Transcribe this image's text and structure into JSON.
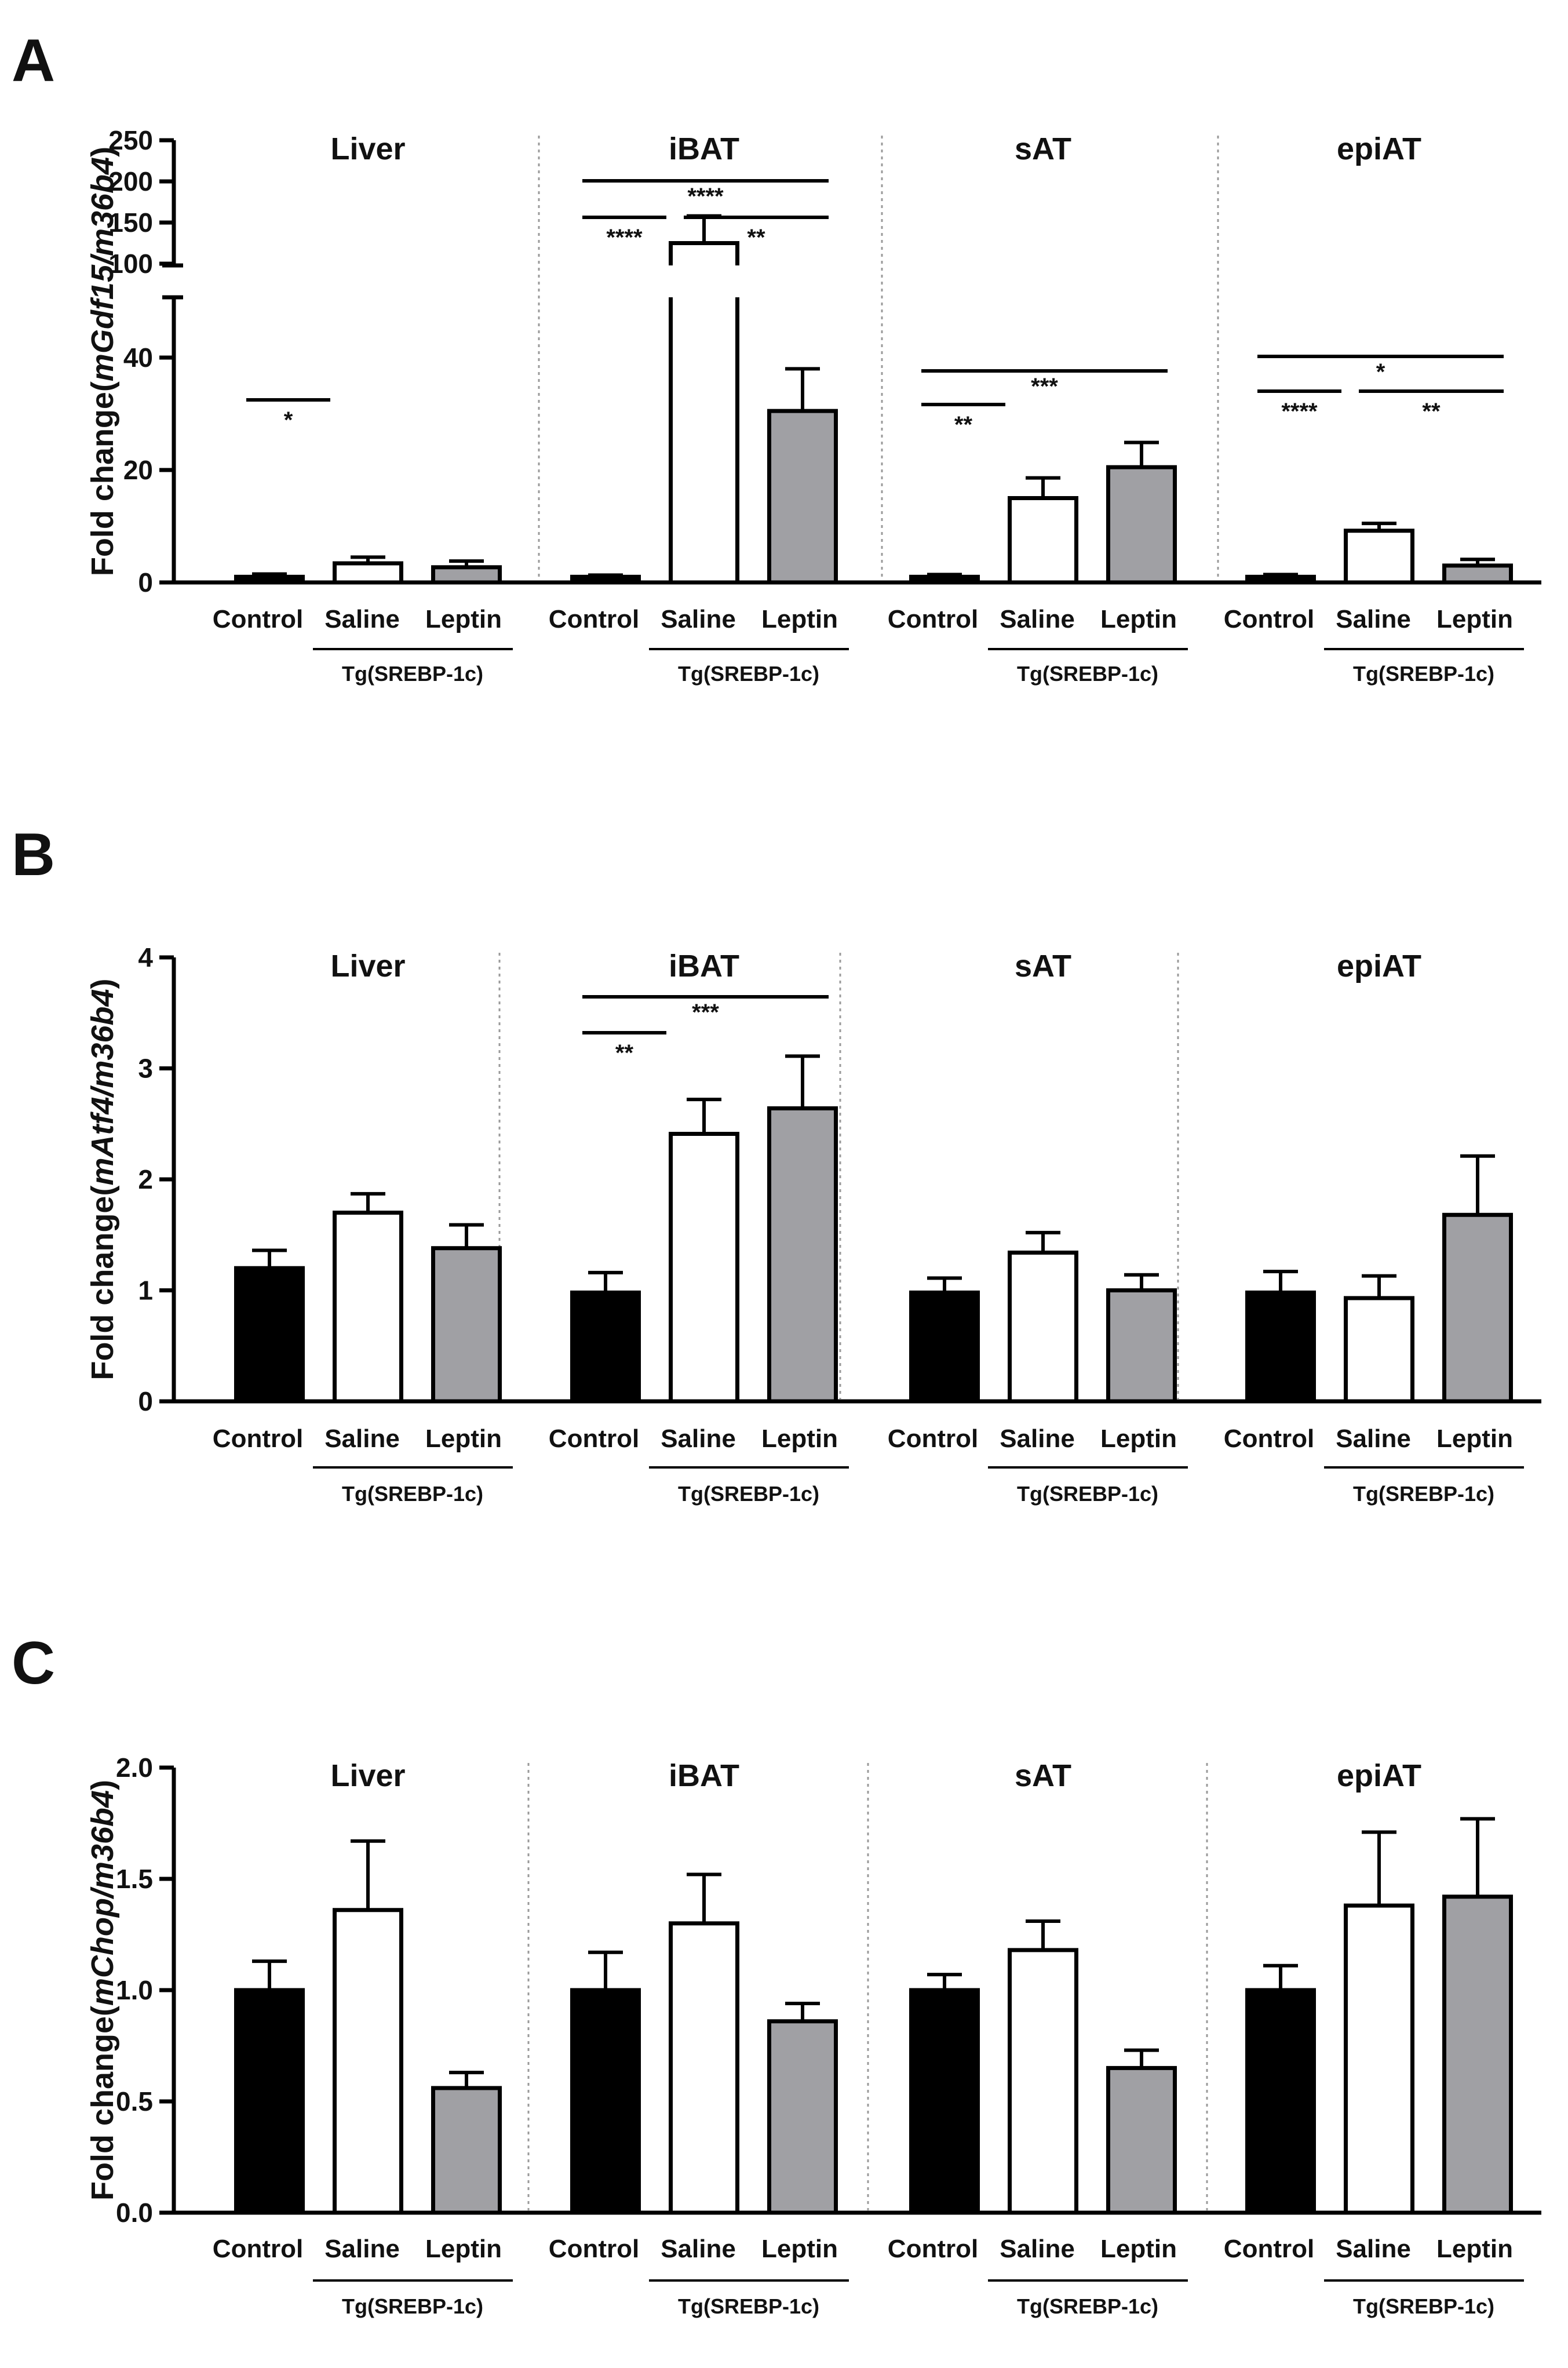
{
  "colors": {
    "control": "#000000",
    "saline": "#ffffff",
    "leptin": "#a0a0a4",
    "axis": "#000000",
    "divider": "#9a9a9a"
  },
  "chart_data": [
    {
      "id": "A",
      "panel_label": "A",
      "type": "bar",
      "ylabel_prefix": "Fold change(",
      "ylabel_gene": "mGdf15/m36b4",
      "ylabel_suffix": ")",
      "ylim": [
        0,
        250
      ],
      "axis_break": {
        "lower_max": 50,
        "upper_min": 100,
        "upper_max": 250
      },
      "yticks": [
        0,
        20,
        40,
        100,
        150,
        200,
        250
      ],
      "ytick_labels": [
        "0",
        "20",
        "40",
        "100",
        "150",
        "200",
        "250"
      ],
      "categories": [
        "Control",
        "Saline",
        "Leptin"
      ],
      "group_label": "Tg(SREBP-1c)",
      "groups": [
        {
          "name": "Liver",
          "values": [
            1.0,
            3.4,
            2.7
          ],
          "errors": [
            0.5,
            1.1,
            1.1
          ],
          "comparisons": [
            {
              "a": 0,
              "b": 1,
              "label": "*",
              "level": 0
            }
          ]
        },
        {
          "name": "iBAT",
          "values": [
            1.0,
            125,
            30.5
          ],
          "errors": [
            0.3,
            33,
            7.5
          ],
          "comparisons": [
            {
              "a": 0,
              "b": 1,
              "label": "****",
              "level": 0
            },
            {
              "a": 1,
              "b": 2,
              "label": "**",
              "level": 0
            },
            {
              "a": 0,
              "b": 2,
              "label": "****",
              "level": 1
            }
          ]
        },
        {
          "name": "sAT",
          "values": [
            1.0,
            15.0,
            20.5
          ],
          "errors": [
            0.4,
            3.6,
            4.4
          ],
          "comparisons": [
            {
              "a": 0,
              "b": 1,
              "label": "**",
              "level": 0
            },
            {
              "a": 0,
              "b": 2,
              "label": "***",
              "level": 1
            }
          ]
        },
        {
          "name": "epiAT",
          "values": [
            1.0,
            9.2,
            3.0
          ],
          "errors": [
            0.4,
            1.3,
            1.1
          ],
          "comparisons": [
            {
              "a": 0,
              "b": 1,
              "label": "****",
              "level": 0
            },
            {
              "a": 1,
              "b": 2,
              "label": "**",
              "level": 0
            },
            {
              "a": 0,
              "b": 2,
              "label": "*",
              "level": 1
            }
          ]
        }
      ]
    },
    {
      "id": "B",
      "panel_label": "B",
      "type": "bar",
      "ylabel_prefix": "Fold change(",
      "ylabel_gene": "mAtf4/m36b4",
      "ylabel_suffix": ")",
      "ylim": [
        0,
        4
      ],
      "yticks": [
        0,
        1,
        2,
        3,
        4
      ],
      "ytick_labels": [
        "0",
        "1",
        "2",
        "3",
        "4"
      ],
      "categories": [
        "Control",
        "Saline",
        "Leptin"
      ],
      "group_label": "Tg(SREBP-1c)",
      "groups": [
        {
          "name": "Liver",
          "values": [
            1.2,
            1.7,
            1.38
          ],
          "errors": [
            0.16,
            0.17,
            0.21
          ],
          "comparisons": []
        },
        {
          "name": "iBAT",
          "values": [
            0.98,
            2.41,
            2.64
          ],
          "errors": [
            0.18,
            0.31,
            0.47
          ],
          "comparisons": [
            {
              "a": 0,
              "b": 1,
              "label": "**",
              "level": 0
            },
            {
              "a": 0,
              "b": 2,
              "label": "***",
              "level": 1
            }
          ]
        },
        {
          "name": "sAT",
          "values": [
            0.98,
            1.34,
            1.0
          ],
          "errors": [
            0.13,
            0.18,
            0.14
          ],
          "comparisons": []
        },
        {
          "name": "epiAT",
          "values": [
            0.98,
            0.93,
            1.68
          ],
          "errors": [
            0.19,
            0.2,
            0.53
          ],
          "comparisons": []
        }
      ]
    },
    {
      "id": "C",
      "panel_label": "C",
      "type": "bar",
      "ylabel_prefix": "Fold change(",
      "ylabel_gene": "mChop/m36b4",
      "ylabel_suffix": ")",
      "ylim": [
        0,
        2.0
      ],
      "yticks": [
        0,
        0.5,
        1.0,
        1.5,
        2.0
      ],
      "ytick_labels": [
        "0.0",
        "0.5",
        "1.0",
        "1.5",
        "2.0"
      ],
      "categories": [
        "Control",
        "Saline",
        "Leptin"
      ],
      "group_label": "Tg(SREBP-1c)",
      "groups": [
        {
          "name": "Liver",
          "values": [
            1.0,
            1.36,
            0.56
          ],
          "errors": [
            0.13,
            0.31,
            0.07
          ],
          "comparisons": []
        },
        {
          "name": "iBAT",
          "values": [
            1.0,
            1.3,
            0.86
          ],
          "errors": [
            0.17,
            0.22,
            0.08
          ],
          "comparisons": []
        },
        {
          "name": "sAT",
          "values": [
            1.0,
            1.18,
            0.65
          ],
          "errors": [
            0.07,
            0.13,
            0.08
          ],
          "comparisons": []
        },
        {
          "name": "epiAT",
          "values": [
            1.0,
            1.38,
            1.42
          ],
          "errors": [
            0.11,
            0.33,
            0.35
          ],
          "comparisons": []
        }
      ]
    }
  ]
}
